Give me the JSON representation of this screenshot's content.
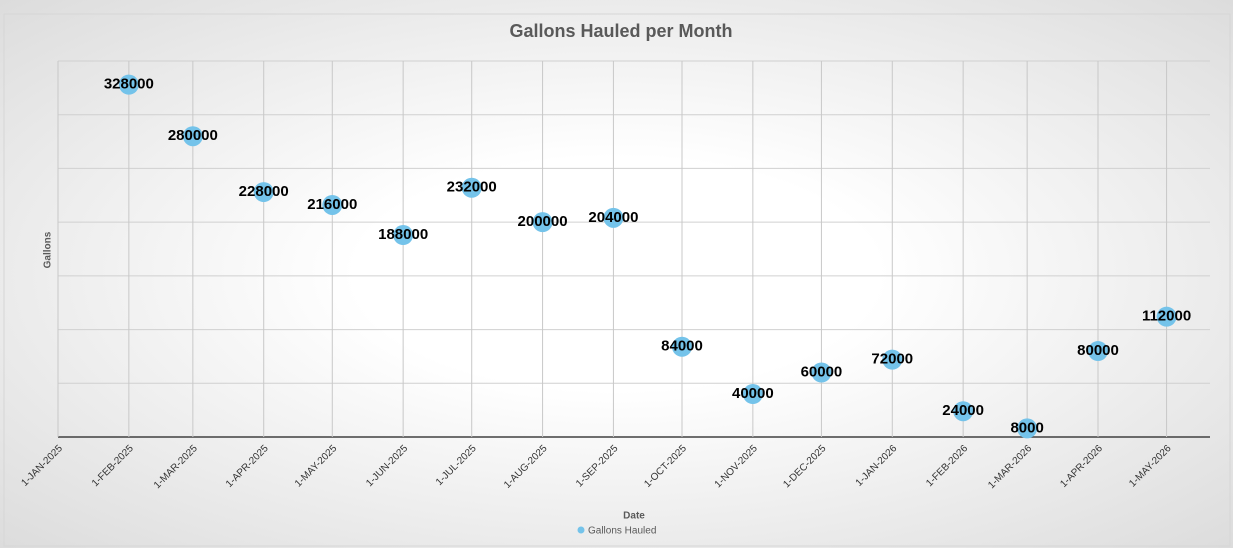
{
  "chart_data": {
    "type": "scatter",
    "title": "Gallons Hauled per Month",
    "x_label": "Date",
    "y_label": "Gallons",
    "x": [
      "1-FEB-2025",
      "1-MAR-2025",
      "1-APR-2025",
      "1-MAY-2025",
      "1-JUN-2025",
      "1-JUL-2025",
      "1-AUG-2025",
      "1-SEP-2025",
      "1-OCT-2025",
      "1-NOV-2025",
      "1-DEC-2025",
      "1-JAN-2026",
      "1-FEB-2026",
      "1-MAR-2026",
      "1-APR-2026",
      "1-MAY-2026"
    ],
    "series": [
      {
        "name": "Gallons Hauled",
        "color": "#74c3ea",
        "values": [
          328000,
          280000,
          228000,
          216000,
          188000,
          232000,
          200000,
          204000,
          84000,
          40000,
          60000,
          72000,
          24000,
          8000,
          80000,
          112000
        ]
      }
    ],
    "xlim": [
      "1-JAN-2025",
      "20-MAY-2026"
    ],
    "xticks": [
      "1-JAN-2025",
      "1-FEB-2025",
      "1-MAR-2025",
      "1-APR-2025",
      "1-MAY-2025",
      "1-JUN-2025",
      "1-JUL-2025",
      "1-AUG-2025",
      "1-SEP-2025",
      "1-OCT-2025",
      "1-NOV-2025",
      "1-DEC-2025",
      "1-JAN-2026",
      "1-FEB-2026",
      "1-MAR-2026",
      "1-APR-2026",
      "1-MAY-2026"
    ],
    "ylim": [
      0,
      350000
    ],
    "yticks": [
      0,
      50000,
      100000,
      150000,
      200000,
      250000,
      300000,
      350000
    ],
    "grid": true,
    "legend": "bottom"
  }
}
